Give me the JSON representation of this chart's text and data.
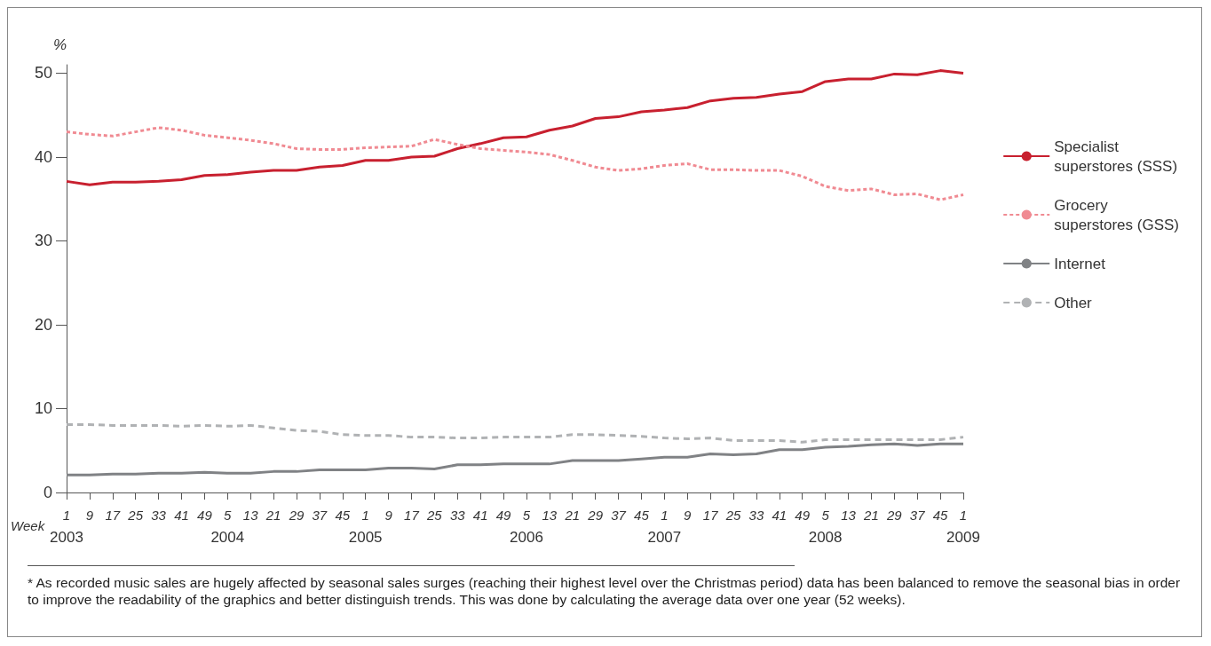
{
  "chart_data": {
    "type": "line",
    "ylabel": "%",
    "xlabel": "Week",
    "categories": [
      "1\n2003",
      "9",
      "17",
      "25",
      "33",
      "41",
      "49",
      "5\n2004",
      "13",
      "21",
      "29",
      "37",
      "45",
      "1\n2005",
      "9",
      "17",
      "25",
      "33",
      "41",
      "49",
      "5\n2006",
      "13",
      "21",
      "29",
      "37",
      "45",
      "1\n2007",
      "9",
      "17",
      "25",
      "33",
      "41",
      "49",
      "5\n2008",
      "13",
      "21",
      "29",
      "37",
      "45",
      "1\n2009"
    ],
    "series": [
      {
        "name": "Specialist superstores (SSS)",
        "color": "#c8202f",
        "line_style": "solid",
        "values": [
          37.1,
          36.7,
          37.0,
          37.0,
          37.1,
          37.3,
          37.8,
          37.9,
          38.2,
          38.4,
          38.4,
          38.8,
          39.0,
          39.6,
          39.6,
          40.0,
          40.1,
          41.0,
          41.6,
          42.3,
          42.4,
          43.2,
          43.7,
          44.6,
          44.8,
          45.4,
          45.6,
          45.9,
          46.7,
          47.0,
          47.1,
          47.5,
          47.8,
          49.0,
          49.3,
          49.3,
          49.9,
          49.8,
          50.3,
          50.0
        ]
      },
      {
        "name": "Grocery superstores (GSS)",
        "color": "#f08a92",
        "line_style": "dotted",
        "values": [
          43.0,
          42.7,
          42.5,
          43.0,
          43.5,
          43.2,
          42.6,
          42.3,
          42.0,
          41.6,
          41.0,
          40.9,
          40.9,
          41.1,
          41.2,
          41.3,
          42.1,
          41.5,
          41.0,
          40.8,
          40.6,
          40.3,
          39.6,
          38.8,
          38.4,
          38.6,
          39.0,
          39.2,
          38.5,
          38.5,
          38.4,
          38.4,
          37.7,
          36.5,
          36.0,
          36.2,
          35.5,
          35.6,
          34.9,
          35.5
        ]
      },
      {
        "name": "Internet",
        "color": "#808285",
        "line_style": "solid",
        "values": [
          2.1,
          2.1,
          2.2,
          2.2,
          2.3,
          2.3,
          2.4,
          2.3,
          2.3,
          2.5,
          2.5,
          2.7,
          2.7,
          2.7,
          2.9,
          2.9,
          2.8,
          3.3,
          3.3,
          3.4,
          3.4,
          3.4,
          3.8,
          3.8,
          3.8,
          4.0,
          4.2,
          4.2,
          4.6,
          4.5,
          4.6,
          5.1,
          5.1,
          5.4,
          5.5,
          5.7,
          5.8,
          5.6,
          5.8,
          5.8
        ]
      },
      {
        "name": "Other",
        "color": "#b0b2b4",
        "line_style": "dashed",
        "values": [
          8.1,
          8.1,
          8.0,
          8.0,
          8.0,
          7.9,
          8.0,
          7.9,
          8.0,
          7.7,
          7.4,
          7.3,
          6.9,
          6.8,
          6.8,
          6.6,
          6.6,
          6.5,
          6.5,
          6.6,
          6.6,
          6.6,
          6.9,
          6.9,
          6.8,
          6.7,
          6.5,
          6.4,
          6.5,
          6.2,
          6.2,
          6.2,
          6.0,
          6.3,
          6.3,
          6.3,
          6.3,
          6.3,
          6.3,
          6.6
        ]
      }
    ],
    "ylim": [
      0,
      51
    ],
    "yticks": [
      0,
      10,
      20,
      30,
      40,
      50
    ],
    "grid": false,
    "legend": "right",
    "marker": "none",
    "annotations": [
      "* As recorded music sales are hugely affected by seasonal sales surges (reaching their highest level over the Christmas period) data has been balanced to remove the seasonal bias in order to improve the readability of the graphics and better distinguish trends. This was done by calculating the average data over one year (52 weeks)."
    ]
  }
}
